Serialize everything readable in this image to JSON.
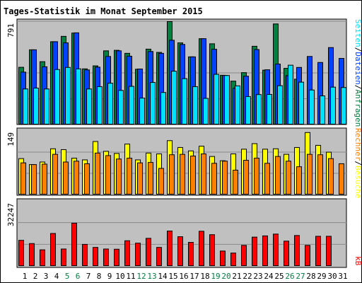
{
  "colors": {
    "title": "#0000cc",
    "panel_bg": "#c0c0c0",
    "grid": "#8a8a8a",
    "hits": "#008040",
    "files": "#0042ff",
    "pages": "#00e0ff",
    "visits": "#ffff00",
    "sites": "#ff8000",
    "kb": "#ff0000",
    "weekend_day": "#008040",
    "weekday": "#000000"
  },
  "chart_data": {
    "type": "bar",
    "title": "Tages-Statistik im Monat September 2015",
    "categories": [
      "1",
      "2",
      "3",
      "4",
      "5",
      "6",
      "7",
      "8",
      "9",
      "10",
      "11",
      "12",
      "13",
      "14",
      "15",
      "16",
      "17",
      "18",
      "19",
      "20",
      "21",
      "22",
      "23",
      "24",
      "25",
      "26",
      "27",
      "28",
      "29",
      "30",
      "31"
    ],
    "weekend_days": [
      "5",
      "6",
      "12",
      "13",
      "19",
      "20",
      "26",
      "27"
    ],
    "panels": [
      {
        "id": "top",
        "ymax_label": "791",
        "ylim": [
          0,
          791
        ],
        "legend": [
          {
            "key": "hits",
            "label": "Anfragen"
          },
          {
            "key": "files",
            "label": "Dateien"
          },
          {
            "key": "pages",
            "label": "Seiten"
          }
        ],
        "series": [
          {
            "key": "hits",
            "values": [
              441,
              575,
              484,
              637,
              678,
              703,
              429,
              452,
              567,
              571,
              548,
              426,
              580,
              555,
              791,
              628,
              521,
              660,
              621,
              380,
              335,
              400,
              602,
              419,
              773,
              433,
              350,
              0,
              0,
              0,
              0
            ]
          },
          {
            "key": "files",
            "values": [
              404,
              575,
              445,
              637,
              628,
              705,
              421,
              442,
              524,
              567,
              526,
              428,
              562,
              548,
              648,
              616,
              521,
              660,
              579,
              378,
              280,
              373,
              577,
              422,
              466,
              377,
              440,
              524,
              478,
              592,
              509
            ]
          },
          {
            "key": "pages",
            "values": [
              275,
              282,
              275,
              424,
              440,
              429,
              275,
              293,
              319,
              264,
              295,
              205,
              325,
              248,
              411,
              354,
              293,
              203,
              387,
              378,
              299,
              217,
              232,
              233,
              300,
              457,
              327,
              267,
              222,
              289,
              286
            ]
          }
        ]
      },
      {
        "id": "middle",
        "ymax_label": "149",
        "ylim": [
          0,
          149
        ],
        "legend": [
          {
            "key": "visits",
            "label": "Besuche"
          },
          {
            "key": "sites",
            "label": "Rechner"
          }
        ],
        "series": [
          {
            "key": "visits",
            "values": [
              85,
              71,
              77,
              108,
              106,
              86,
              82,
              125,
              102,
              97,
              119,
              82,
              98,
              96,
              127,
              111,
              103,
              114,
              90,
              80,
              96,
              107,
              120,
              107,
              108,
              95,
              111,
              146,
              116,
              100,
              0
            ]
          },
          {
            "key": "sites",
            "values": [
              75,
              71,
              72,
              95,
              77,
              79,
              73,
              98,
              92,
              84,
              86,
              75,
              76,
              62,
              94,
              95,
              91,
              96,
              74,
              79,
              58,
              81,
              86,
              74,
              90,
              79,
              66,
              95,
              94,
              85,
              73
            ]
          }
        ]
      },
      {
        "id": "bottom",
        "ymax_label": "32247",
        "ylim": [
          0,
          32247
        ],
        "legend": [
          {
            "key": "kb",
            "label": "kB"
          }
        ],
        "series": [
          {
            "key": "kb",
            "values": [
              12900,
              11300,
              8200,
              16300,
              8600,
              21400,
              10900,
              9400,
              8600,
              8500,
              12700,
              11500,
              13900,
              9400,
              17500,
              14700,
              11900,
              17400,
              15700,
              7600,
              6600,
              10400,
              14500,
              15100,
              16000,
              12500,
              15300,
              10400,
              14900,
              14900,
              0
            ]
          }
        ]
      }
    ]
  }
}
